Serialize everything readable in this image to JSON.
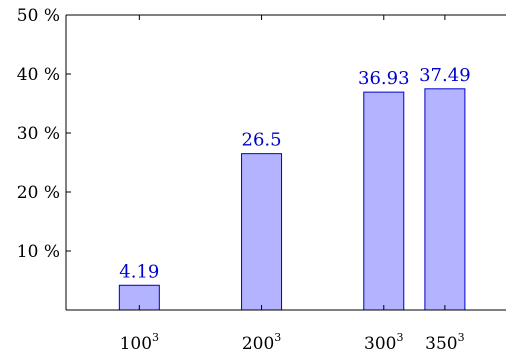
{
  "chart_data": {
    "type": "bar",
    "categories": [
      {
        "base": "100",
        "exp": "3",
        "x": 100
      },
      {
        "base": "200",
        "exp": "3",
        "x": 200
      },
      {
        "base": "300",
        "exp": "3",
        "x": 300
      },
      {
        "base": "350",
        "exp": "3",
        "x": 350
      }
    ],
    "values": [
      4.19,
      26.5,
      36.93,
      37.49
    ],
    "value_labels": [
      "4.19",
      "26.5",
      "36.93",
      "37.49"
    ],
    "yticks": [
      10,
      20,
      30,
      40,
      50
    ],
    "ytick_labels": [
      "10 %",
      "20 %",
      "30 %",
      "40 %",
      "50 %"
    ],
    "ylim": [
      0,
      50
    ],
    "xlim": [
      40,
      400
    ],
    "title": "",
    "xlabel": "",
    "ylabel": "",
    "grid": false,
    "colors": {
      "bar_fill": "#b3b3ff",
      "bar_stroke": "#0000cc",
      "label": "#0000cc",
      "axis": "#000000"
    }
  }
}
